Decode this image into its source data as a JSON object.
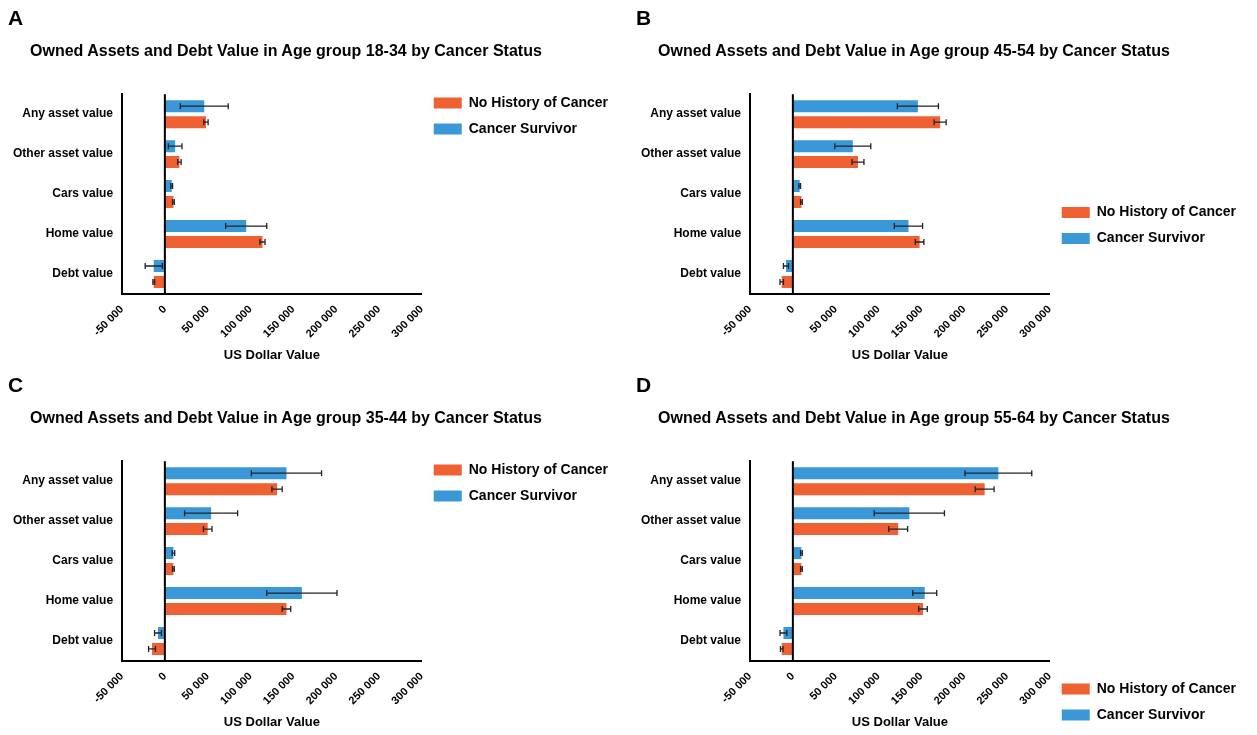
{
  "chart_data": [
    {
      "type": "bar",
      "orientation": "horizontal",
      "title": "Owned Assets and Debt Value in Age group 18-34 by Cancer Status",
      "annotations": [
        "A"
      ],
      "xlabel": "US Dollar Value",
      "categories": [
        "Any asset value",
        "Other asset value",
        "Cars value",
        "Home value",
        "Debt value"
      ],
      "series": [
        {
          "name": "Cancer Survivor",
          "color": "#3a98d8",
          "values": [
            46000,
            12000,
            8000,
            95000,
            -13000
          ],
          "errors": [
            28000,
            8000,
            1000,
            24000,
            10000
          ]
        },
        {
          "name": "No History of Cancer",
          "color": "#ef6133",
          "values": [
            48000,
            17000,
            10000,
            114000,
            -13000
          ],
          "errors": [
            2500,
            2000,
            1000,
            3000,
            1000
          ]
        }
      ],
      "xlim": [
        -50000,
        300000
      ],
      "xticks": [
        {
          "value": -50000,
          "label": "-50 000"
        },
        {
          "value": 0,
          "label": "0"
        },
        {
          "value": 50000,
          "label": "50 000"
        },
        {
          "value": 100000,
          "label": "100 000"
        },
        {
          "value": 150000,
          "label": "150 000"
        },
        {
          "value": 200000,
          "label": "200 000"
        },
        {
          "value": 250000,
          "label": "250 000"
        },
        {
          "value": 300000,
          "label": "300 000"
        }
      ],
      "ref_lines": [
        {
          "axis": "x",
          "value": 0
        }
      ],
      "grid": false,
      "legend": "top right"
    },
    {
      "type": "bar",
      "orientation": "horizontal",
      "title": "Owned Assets and Debt Value in Age group 45-54 by Cancer Status",
      "annotations": [
        "B"
      ],
      "xlabel": "US Dollar Value",
      "categories": [
        "Any asset value",
        "Other asset value",
        "Cars value",
        "Home value",
        "Debt value"
      ],
      "series": [
        {
          "name": "Cancer Survivor",
          "color": "#3a98d8",
          "values": [
            146000,
            70000,
            8000,
            135000,
            -8000
          ],
          "errors": [
            24000,
            21000,
            1000,
            16500,
            3000
          ]
        },
        {
          "name": "No History of Cancer",
          "color": "#ef6133",
          "values": [
            172000,
            76000,
            10000,
            148000,
            -13000
          ],
          "errors": [
            7000,
            7000,
            1000,
            5000,
            2000
          ]
        }
      ],
      "xlim": [
        -50000,
        300000
      ],
      "xticks": [
        {
          "value": -50000,
          "label": "-50 000"
        },
        {
          "value": 0,
          "label": "0"
        },
        {
          "value": 50000,
          "label": "50 000"
        },
        {
          "value": 100000,
          "label": "100 000"
        },
        {
          "value": 150000,
          "label": "150 000"
        },
        {
          "value": 200000,
          "label": "200 000"
        },
        {
          "value": 250000,
          "label": "250 000"
        },
        {
          "value": 300000,
          "label": "300 000"
        }
      ],
      "ref_lines": [
        {
          "axis": "x",
          "value": 0
        }
      ],
      "grid": false,
      "legend": "right"
    },
    {
      "type": "bar",
      "orientation": "horizontal",
      "title": "Owned Assets and Debt Value in Age group 35-44 by Cancer Status",
      "annotations": [
        "C"
      ],
      "xlabel": "US Dollar Value",
      "categories": [
        "Any asset value",
        "Other asset value",
        "Cars value",
        "Home value",
        "Debt value"
      ],
      "series": [
        {
          "name": "Cancer Survivor",
          "color": "#3a98d8",
          "values": [
            142000,
            54000,
            10000,
            160000,
            -8000
          ],
          "errors": [
            41000,
            31000,
            1500,
            41000,
            4000
          ]
        },
        {
          "name": "No History of Cancer",
          "color": "#ef6133",
          "values": [
            131000,
            50000,
            10000,
            142000,
            -15000
          ],
          "errors": [
            6000,
            5000,
            1000,
            5000,
            4000
          ]
        }
      ],
      "xlim": [
        -50000,
        300000
      ],
      "xticks": [
        {
          "value": -50000,
          "label": "-50 000"
        },
        {
          "value": 0,
          "label": "0"
        },
        {
          "value": 50000,
          "label": "50 000"
        },
        {
          "value": 100000,
          "label": "100 000"
        },
        {
          "value": 150000,
          "label": "150 000"
        },
        {
          "value": 200000,
          "label": "200 000"
        },
        {
          "value": 250000,
          "label": "250 000"
        },
        {
          "value": 300000,
          "label": "300 000"
        }
      ],
      "ref_lines": [
        {
          "axis": "x",
          "value": 0
        }
      ],
      "grid": false,
      "legend": "top right"
    },
    {
      "type": "bar",
      "orientation": "horizontal",
      "title": "Owned Assets and Debt Value in Age group 55-64 by Cancer Status",
      "annotations": [
        "D"
      ],
      "xlabel": "US Dollar Value",
      "categories": [
        "Any asset value",
        "Other asset value",
        "Cars value",
        "Home value",
        "Debt value"
      ],
      "series": [
        {
          "name": "Cancer Survivor",
          "color": "#3a98d8",
          "values": [
            240000,
            136000,
            10000,
            154000,
            -11000
          ],
          "errors": [
            39000,
            41000,
            1000,
            14000,
            4000
          ]
        },
        {
          "name": "No History of Cancer",
          "color": "#ef6133",
          "values": [
            224000,
            123000,
            10000,
            152000,
            -13000
          ],
          "errors": [
            11000,
            11000,
            1000,
            5000,
            1500
          ]
        }
      ],
      "xlim": [
        -50000,
        300000
      ],
      "xticks": [
        {
          "value": -50000,
          "label": "-50 000"
        },
        {
          "value": 0,
          "label": "0"
        },
        {
          "value": 50000,
          "label": "50 000"
        },
        {
          "value": 100000,
          "label": "100 000"
        },
        {
          "value": 150000,
          "label": "150 000"
        },
        {
          "value": 200000,
          "label": "200 000"
        },
        {
          "value": 250000,
          "label": "250 000"
        },
        {
          "value": 300000,
          "label": "300 000"
        }
      ],
      "ref_lines": [
        {
          "axis": "x",
          "value": 0
        }
      ],
      "grid": false,
      "legend": "bottom right"
    }
  ]
}
